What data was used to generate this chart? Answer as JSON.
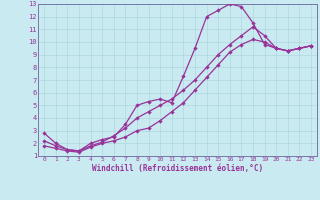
{
  "background_color": "#c8eaf0",
  "grid_color": "#b0d8e0",
  "line_color": "#993399",
  "spine_color": "#7777aa",
  "xlabel": "Windchill (Refroidissement éolien,°C)",
  "xlim": [
    -0.5,
    23.5
  ],
  "ylim": [
    1,
    13
  ],
  "xticks": [
    0,
    1,
    2,
    3,
    4,
    5,
    6,
    7,
    8,
    9,
    10,
    11,
    12,
    13,
    14,
    15,
    16,
    17,
    18,
    19,
    20,
    21,
    22,
    23
  ],
  "yticks": [
    1,
    2,
    3,
    4,
    5,
    6,
    7,
    8,
    9,
    10,
    11,
    12,
    13
  ],
  "series1_x": [
    0,
    1,
    2,
    3,
    4,
    5,
    6,
    7,
    8,
    9,
    10,
    11,
    12,
    13,
    14,
    15,
    16,
    17,
    18,
    19,
    20,
    21,
    22,
    23
  ],
  "series1_y": [
    2.8,
    2.0,
    1.5,
    1.4,
    2.0,
    2.3,
    2.5,
    3.5,
    5.0,
    5.3,
    5.5,
    5.2,
    7.3,
    9.5,
    12.0,
    12.5,
    13.0,
    12.8,
    11.5,
    9.8,
    9.5,
    9.3,
    9.5,
    9.7
  ],
  "series2_x": [
    0,
    1,
    2,
    3,
    4,
    5,
    6,
    7,
    8,
    9,
    10,
    11,
    12,
    13,
    14,
    15,
    16,
    17,
    18,
    19,
    20,
    21,
    22,
    23
  ],
  "series2_y": [
    1.8,
    1.6,
    1.4,
    1.3,
    1.7,
    2.0,
    2.2,
    2.5,
    3.0,
    3.2,
    3.8,
    4.5,
    5.2,
    6.2,
    7.2,
    8.2,
    9.2,
    9.8,
    10.2,
    10.0,
    9.5,
    9.3,
    9.5,
    9.7
  ],
  "series3_x": [
    0,
    1,
    2,
    3,
    4,
    5,
    6,
    7,
    8,
    9,
    10,
    11,
    12,
    13,
    14,
    15,
    16,
    17,
    18,
    19,
    20,
    21,
    22,
    23
  ],
  "series3_y": [
    2.2,
    1.8,
    1.5,
    1.4,
    1.8,
    2.1,
    2.6,
    3.2,
    4.0,
    4.5,
    5.0,
    5.5,
    6.2,
    7.0,
    8.0,
    9.0,
    9.8,
    10.5,
    11.2,
    10.5,
    9.5,
    9.3,
    9.5,
    9.7
  ]
}
